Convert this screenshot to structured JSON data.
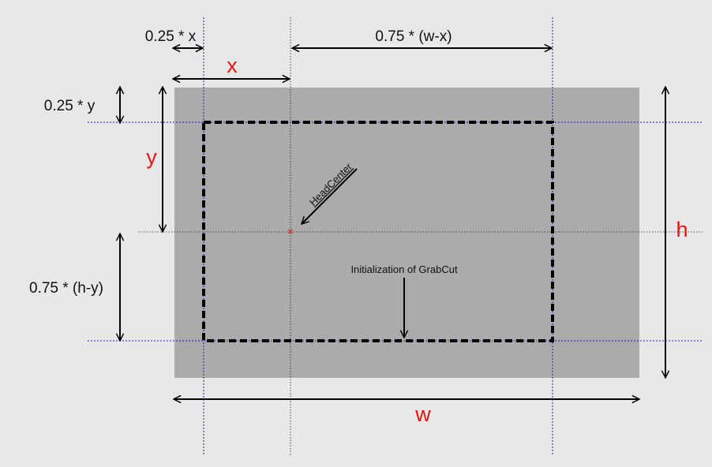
{
  "colors": {
    "background": "#e8e8e8",
    "image_region": "#ababab",
    "guide_blue": "#1a1acc",
    "guide_black": "#222222",
    "box_dashed": "#000000",
    "label_red": "#ee1111",
    "label_black": "#111111"
  },
  "labels": {
    "quarter_x": "0.25 * x",
    "three_quarter_w_minus_x": "0.75 * (w-x)",
    "x": "x",
    "quarter_y": "0.25 * y",
    "y": "y",
    "three_quarter_h_minus_y": "0.75 * (h-y)",
    "h": "h",
    "w": "w",
    "head_center": "HeadCenter",
    "grabcut_init": "Initialization of GrabCut"
  },
  "head_center_marker": "×"
}
